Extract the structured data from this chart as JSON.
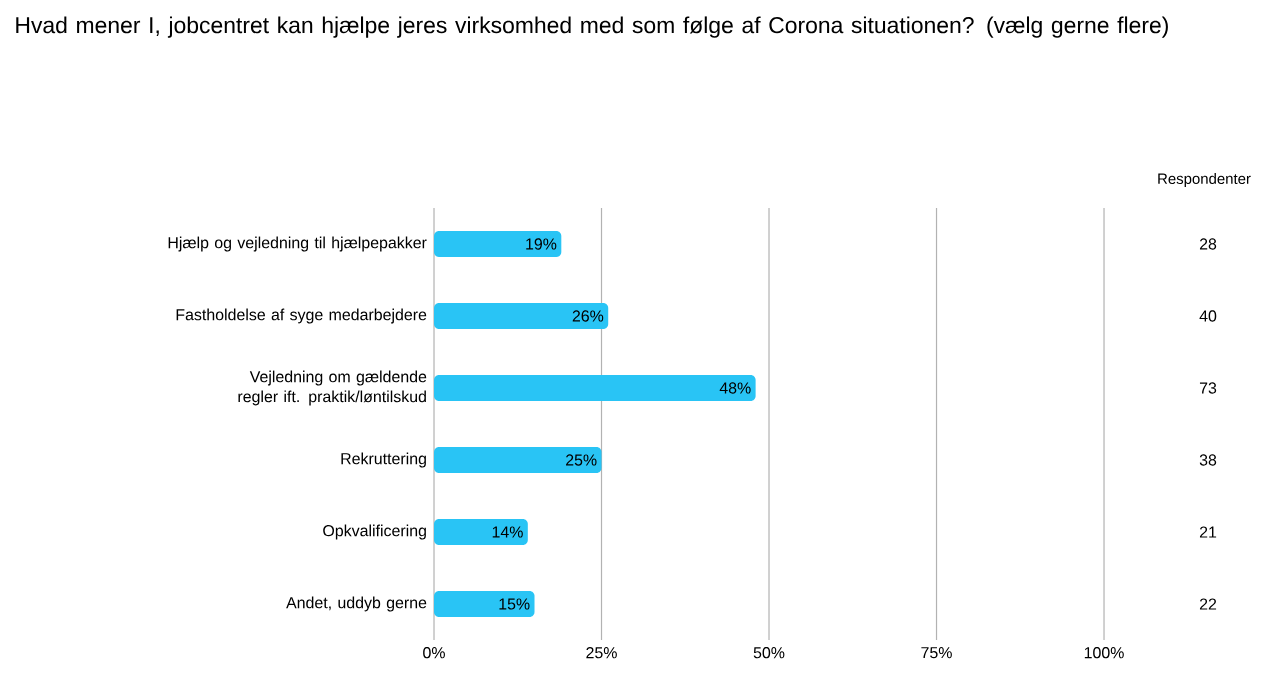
{
  "chart_data": {
    "type": "bar",
    "orientation": "horizontal",
    "title": "Hvad mener I, jobcentret kan hjælpe jeres virksomhed med som følge af Corona situationen? (vælg gerne flere)",
    "categories": [
      "Hjælp og vejledning til hjælpepakker",
      "Fastholdelse af syge medarbejdere",
      "Vejledning om gældende regler ift. praktik/løntilskud",
      "Rekruttering",
      "Opkvalificering",
      "Andet, uddyb gerne"
    ],
    "values": [
      19,
      26,
      48,
      25,
      14,
      15
    ],
    "value_labels": [
      "19%",
      "26%",
      "48%",
      "25%",
      "14%",
      "15%"
    ],
    "color": "#29c4f5",
    "xlim": [
      0,
      100
    ],
    "xticks": [
      {
        "value": 0,
        "label": "0%"
      },
      {
        "value": 25,
        "label": "25%"
      },
      {
        "value": 50,
        "label": "50%"
      },
      {
        "value": 75,
        "label": "75%"
      },
      {
        "value": 100,
        "label": "100%"
      }
    ],
    "grid": "x",
    "annotations": [
      "Respondenter",
      "28",
      "40",
      "73",
      "38",
      "21",
      "22"
    ]
  }
}
